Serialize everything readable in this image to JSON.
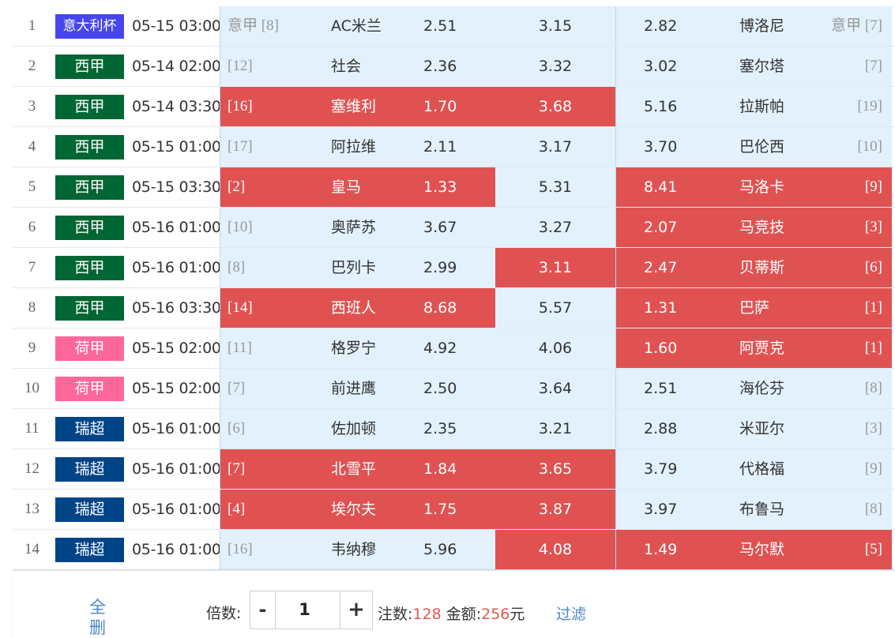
{
  "colors": {
    "league_colors": {
      "意甲杯": "#4646ef",
      "意大利杯": "#4646ef",
      "西甲": "#006633",
      "荷甲": "#ff6699",
      "瑞超": "#004488"
    },
    "selected_bg": "#e05252",
    "cell_bg": "#e2f1fc"
  },
  "matches": [
    {
      "num": "1",
      "league": "意大利杯",
      "time": "05-15 03:00",
      "home_rank": "意甲 [8]",
      "home": "AC米兰",
      "home_odds": "2.51",
      "draw_odds": "3.15",
      "away_odds": "2.82",
      "away": "博洛尼",
      "away_rank": "意甲 [7]",
      "sel": [
        false,
        false,
        false
      ]
    },
    {
      "num": "2",
      "league": "西甲",
      "time": "05-14 02:00",
      "home_rank": "[12]",
      "home": "社会",
      "home_odds": "2.36",
      "draw_odds": "3.32",
      "away_odds": "3.02",
      "away": "塞尔塔",
      "away_rank": "[7]",
      "sel": [
        false,
        false,
        false
      ]
    },
    {
      "num": "3",
      "league": "西甲",
      "time": "05-14 03:30",
      "home_rank": "[16]",
      "home": "塞维利",
      "home_odds": "1.70",
      "draw_odds": "3.68",
      "away_odds": "5.16",
      "away": "拉斯帕",
      "away_rank": "[19]",
      "sel": [
        true,
        true,
        false
      ]
    },
    {
      "num": "4",
      "league": "西甲",
      "time": "05-15 01:00",
      "home_rank": "[17]",
      "home": "阿拉维",
      "home_odds": "2.11",
      "draw_odds": "3.17",
      "away_odds": "3.70",
      "away": "巴伦西",
      "away_rank": "[10]",
      "sel": [
        false,
        false,
        false
      ]
    },
    {
      "num": "5",
      "league": "西甲",
      "time": "05-15 03:30",
      "home_rank": "[2]",
      "home": "皇马",
      "home_odds": "1.33",
      "draw_odds": "5.31",
      "away_odds": "8.41",
      "away": "马洛卡",
      "away_rank": "[9]",
      "sel": [
        true,
        false,
        true
      ]
    },
    {
      "num": "6",
      "league": "西甲",
      "time": "05-16 01:00",
      "home_rank": "[10]",
      "home": "奥萨苏",
      "home_odds": "3.67",
      "draw_odds": "3.27",
      "away_odds": "2.07",
      "away": "马竞技",
      "away_rank": "[3]",
      "sel": [
        false,
        false,
        true
      ]
    },
    {
      "num": "7",
      "league": "西甲",
      "time": "05-16 01:00",
      "home_rank": "[8]",
      "home": "巴列卡",
      "home_odds": "2.99",
      "draw_odds": "3.11",
      "away_odds": "2.47",
      "away": "贝蒂斯",
      "away_rank": "[6]",
      "sel": [
        false,
        true,
        true
      ]
    },
    {
      "num": "8",
      "league": "西甲",
      "time": "05-16 03:30",
      "home_rank": "[14]",
      "home": "西班人",
      "home_odds": "8.68",
      "draw_odds": "5.57",
      "away_odds": "1.31",
      "away": "巴萨",
      "away_rank": "[1]",
      "sel": [
        true,
        false,
        true
      ]
    },
    {
      "num": "9",
      "league": "荷甲",
      "time": "05-15 02:00",
      "home_rank": "[11]",
      "home": "格罗宁",
      "home_odds": "4.92",
      "draw_odds": "4.06",
      "away_odds": "1.60",
      "away": "阿贾克",
      "away_rank": "[1]",
      "sel": [
        false,
        false,
        true
      ]
    },
    {
      "num": "10",
      "league": "荷甲",
      "time": "05-15 02:00",
      "home_rank": "[7]",
      "home": "前进鹰",
      "home_odds": "2.50",
      "draw_odds": "3.64",
      "away_odds": "2.51",
      "away": "海伦芬",
      "away_rank": "[8]",
      "sel": [
        false,
        false,
        false
      ]
    },
    {
      "num": "11",
      "league": "瑞超",
      "time": "05-16 01:00",
      "home_rank": "[6]",
      "home": "佐加顿",
      "home_odds": "2.35",
      "draw_odds": "3.21",
      "away_odds": "2.88",
      "away": "米亚尔",
      "away_rank": "[3]",
      "sel": [
        false,
        false,
        false
      ]
    },
    {
      "num": "12",
      "league": "瑞超",
      "time": "05-16 01:00",
      "home_rank": "[7]",
      "home": "北雪平",
      "home_odds": "1.84",
      "draw_odds": "3.65",
      "away_odds": "3.79",
      "away": "代格福",
      "away_rank": "[9]",
      "sel": [
        true,
        true,
        false
      ]
    },
    {
      "num": "13",
      "league": "瑞超",
      "time": "05-16 01:00",
      "home_rank": "[4]",
      "home": "埃尔夫",
      "home_odds": "1.75",
      "draw_odds": "3.87",
      "away_odds": "3.97",
      "away": "布鲁马",
      "away_rank": "[8]",
      "sel": [
        true,
        true,
        false
      ]
    },
    {
      "num": "14",
      "league": "瑞超",
      "time": "05-16 01:00",
      "home_rank": "[16]",
      "home": "韦纳穆",
      "home_odds": "5.96",
      "draw_odds": "4.08",
      "away_odds": "1.49",
      "away": "马尔默",
      "away_rank": "[5]",
      "sel": [
        false,
        true,
        true
      ]
    }
  ],
  "footer": {
    "clear_all_label": "全删",
    "multiplier_label": "倍数:",
    "minus_label": "-",
    "plus_label": "+",
    "multiplier_value": "1",
    "bets_label": "注数:",
    "bets_value": "128",
    "amount_label": "金额:",
    "amount_value": "256",
    "amount_unit": "元",
    "filter_label": "过滤"
  }
}
